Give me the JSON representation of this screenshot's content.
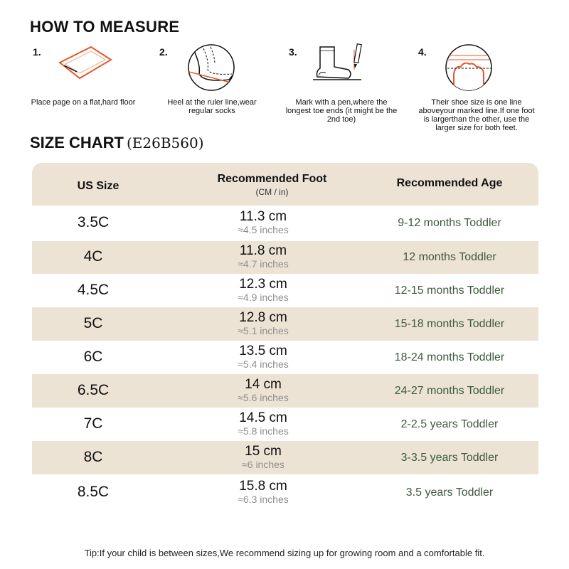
{
  "measure": {
    "title": "HOW TO MEASURE",
    "steps": [
      {
        "num": "1.",
        "icon": "paper-sheet-icon",
        "text": "Place page on a flat,hard floor"
      },
      {
        "num": "2.",
        "icon": "heel-sock-icon",
        "text": "Heel at the ruler line,wear regular socks"
      },
      {
        "num": "3.",
        "icon": "sock-pen-icon",
        "text": "Mark with a pen,where the longest toe ends (it might be the 2nd toe)"
      },
      {
        "num": "4.",
        "icon": "toe-line-icon",
        "text": "Their shoe size is one line aboveyour marked line.If one foot is largerthan the other, use the larger size for both feet."
      }
    ]
  },
  "size_chart": {
    "title": "SIZE CHART",
    "code": "(E26B560)",
    "headers": {
      "size": "US Size",
      "foot": "Recommended Foot",
      "foot_sub": "(CM / in)",
      "age": "Recommended Age"
    },
    "rows": [
      {
        "size": "3.5C",
        "cm": "11.3 cm",
        "inch": "≈4.5 inches",
        "age": "9-12 months Toddler"
      },
      {
        "size": "4C",
        "cm": "11.8 cm",
        "inch": "≈4.7 inches",
        "age": "12 months Toddler"
      },
      {
        "size": "4.5C",
        "cm": "12.3 cm",
        "inch": "≈4.9 inches",
        "age": "12-15 months Toddler"
      },
      {
        "size": "5C",
        "cm": "12.8 cm",
        "inch": "≈5.1 inches",
        "age": "15-18 months Toddler"
      },
      {
        "size": "6C",
        "cm": "13.5 cm",
        "inch": "≈5.4 inches",
        "age": "18-24 months Toddler"
      },
      {
        "size": "6.5C",
        "cm": "14 cm",
        "inch": "≈5.6 inches",
        "age": "24-27 months Toddler"
      },
      {
        "size": "7C",
        "cm": "14.5 cm",
        "inch": "≈5.8 inches",
        "age": "2-2.5 years Toddler"
      },
      {
        "size": "8C",
        "cm": "15 cm",
        "inch": "≈6 inches",
        "age": "3-3.5 years Toddler"
      },
      {
        "size": "8.5C",
        "cm": "15.8 cm",
        "inch": "≈6.3 inches",
        "age": "3.5 years Toddler"
      }
    ]
  },
  "tip": "Tip:If your child is between sizes,We recommend sizing up for growing room and a comfortable fit.",
  "colors": {
    "accent": "#e8552a",
    "row_shade": "#ece3d5",
    "age_text": "#3d5a3d"
  }
}
